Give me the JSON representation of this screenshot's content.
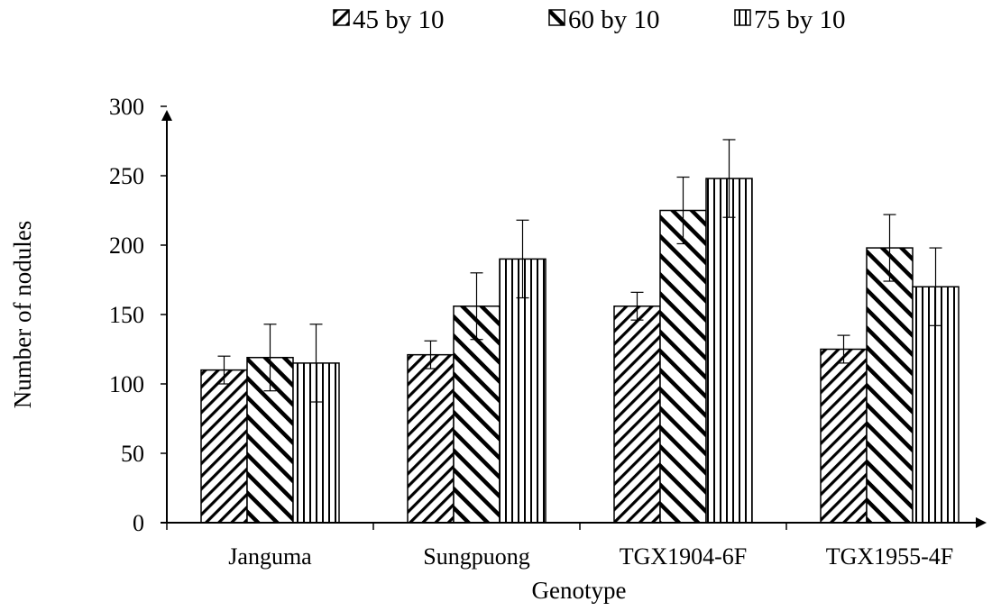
{
  "chart_data": {
    "type": "bar",
    "xlabel": "Genotype",
    "ylabel": "Number of nodules",
    "categories": [
      "Janguma",
      "Sungpuong",
      "TGX1904-6F",
      "TGX1955-4F"
    ],
    "series": [
      {
        "name": "45 by 10",
        "values": [
          110,
          121,
          156,
          125
        ],
        "errors": [
          10,
          10,
          10,
          10
        ],
        "pattern": "diag-up"
      },
      {
        "name": "60 by 10",
        "values": [
          119,
          156,
          225,
          198
        ],
        "errors": [
          24,
          24,
          24,
          24
        ],
        "pattern": "diag-down"
      },
      {
        "name": "75 by 10",
        "values": [
          115,
          190,
          248,
          170
        ],
        "errors": [
          28,
          28,
          28,
          28
        ],
        "pattern": "vertical"
      }
    ],
    "ylim": [
      0,
      300
    ],
    "yticks": [
      0,
      50,
      100,
      150,
      200,
      250,
      300
    ],
    "grid": false,
    "legend_position": "top"
  },
  "colors": {
    "ink": "#000000",
    "background": "#ffffff"
  }
}
